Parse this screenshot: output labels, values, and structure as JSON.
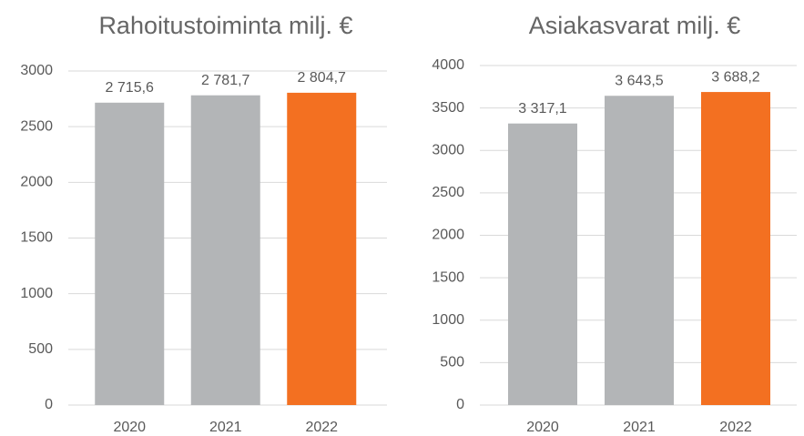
{
  "chart_data": [
    {
      "type": "bar",
      "title": "Rahoitustoiminta milj. €",
      "categories": [
        "2020",
        "2021",
        "2022"
      ],
      "values": [
        2715.6,
        2781.7,
        2804.7
      ],
      "value_labels": [
        "2 715,6",
        "2 781,7",
        "2 804,7"
      ],
      "colors": [
        "#b3b5b7",
        "#b3b5b7",
        "#f37021"
      ],
      "ylim": [
        0,
        3000
      ],
      "yticks": [
        0,
        500,
        1000,
        1500,
        2000,
        2500,
        3000
      ],
      "grid": true
    },
    {
      "type": "bar",
      "title": "Asiakasvarat milj. €",
      "categories": [
        "2020",
        "2021",
        "2022"
      ],
      "values": [
        3317.1,
        3643.5,
        3688.2
      ],
      "value_labels": [
        "3 317,1",
        "3 643,5",
        "3 688,2"
      ],
      "colors": [
        "#b3b5b7",
        "#b3b5b7",
        "#f37021"
      ],
      "ylim": [
        0,
        4000
      ],
      "yticks": [
        0,
        500,
        1000,
        1500,
        2000,
        2500,
        3000,
        3500,
        4000
      ],
      "grid": true
    }
  ]
}
